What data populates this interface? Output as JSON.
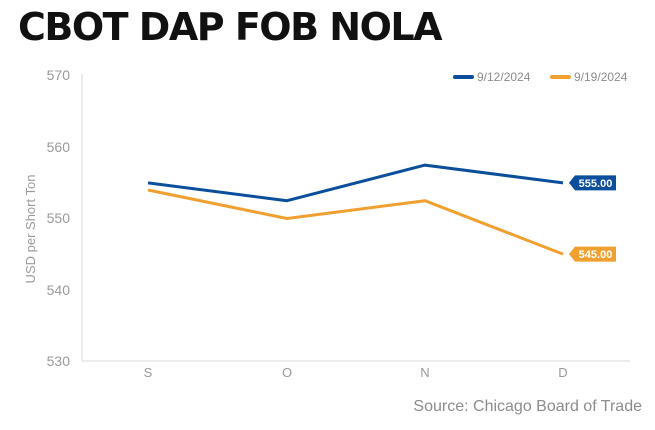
{
  "chart_data": {
    "type": "line",
    "title": "CBOT DAP FOB NOLA",
    "ylabel": "USD per Short Ton",
    "xlabel": "",
    "categories": [
      "S",
      "O",
      "N",
      "D"
    ],
    "ylim": [
      530,
      570
    ],
    "yticks": [
      "570",
      "560",
      "550",
      "540",
      "530"
    ],
    "series": [
      {
        "name": "9/12/2024",
        "color": "#0b4f9c",
        "values": [
          555.0,
          552.5,
          557.5,
          555.0
        ],
        "end_label": "555.00"
      },
      {
        "name": "9/19/2024",
        "color": "#f0a030",
        "values": [
          554.0,
          550.0,
          552.5,
          545.0
        ],
        "end_label": "545.00"
      }
    ],
    "legend_position": "top-right",
    "source": "Source: Chicago Board of Trade"
  }
}
